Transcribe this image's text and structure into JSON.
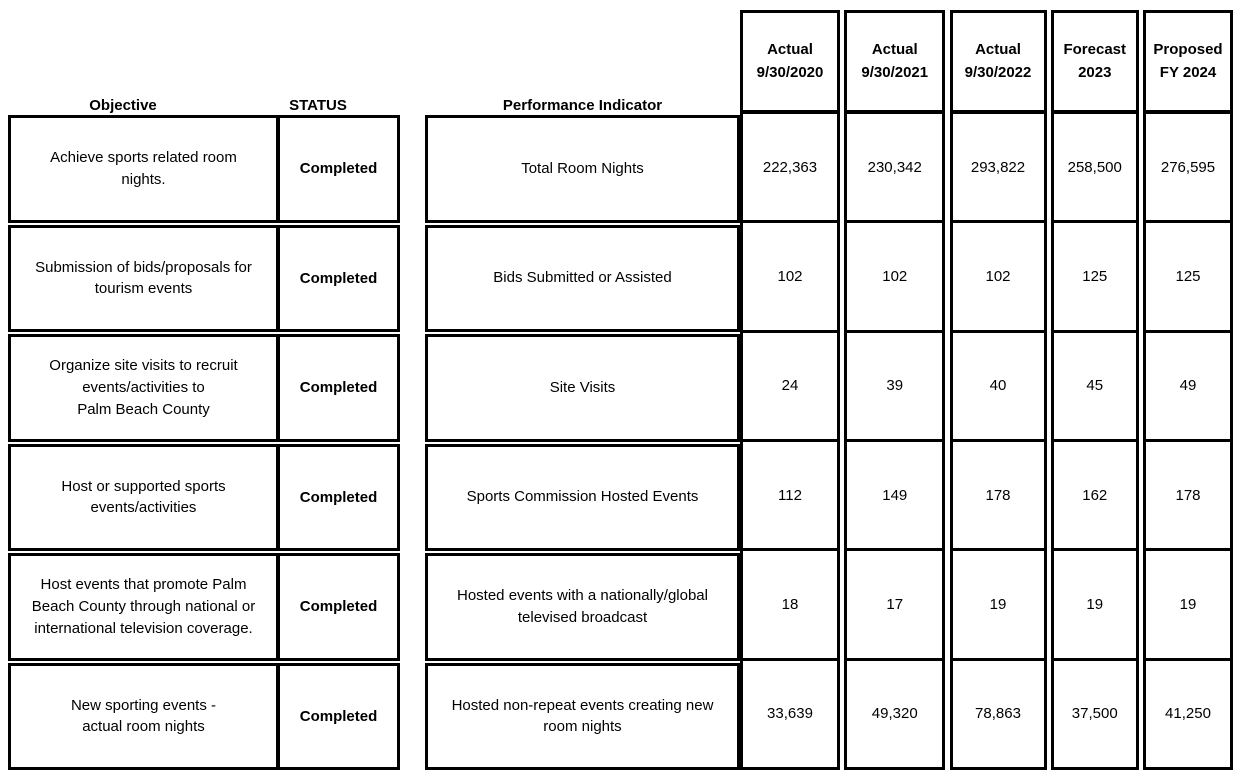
{
  "document": {
    "background_color": "#ffffff",
    "border_color": "#000000",
    "text_color": "#000000"
  },
  "column_labels": {
    "objective": "Objective",
    "status": "STATUS",
    "performance_indicator": "Performance Indicator"
  },
  "objectives_table": {
    "rows": [
      {
        "objective": "Achieve sports related room\nnights.",
        "status": "Completed"
      },
      {
        "objective": "Submission of bids/proposals for\ntourism events",
        "status": "Completed"
      },
      {
        "objective": "Organize site visits to recruit\nevents/activities to\nPalm Beach County",
        "status": "Completed"
      },
      {
        "objective": "Host or supported sports\nevents/activities",
        "status": "Completed"
      },
      {
        "objective": "Host events that promote Palm\nBeach County through national or\ninternational television coverage.",
        "status": "Completed"
      },
      {
        "objective": "New sporting events -\nactual room nights",
        "status": "Completed"
      }
    ]
  },
  "indicators_table": {
    "rows": [
      "Total Room Nights",
      "Bids Submitted or Assisted",
      "Site Visits",
      "Sports Commission Hosted Events",
      "Hosted events with a nationally/global\ntelevised broadcast",
      "Hosted non-repeat events creating new\nroom nights"
    ]
  },
  "value_columns": [
    {
      "header": "Actual\n9/30/2020",
      "values": [
        "222,363",
        "102",
        "24",
        "112",
        "18",
        "33,639"
      ]
    },
    {
      "header": "Actual\n9/30/2021",
      "values": [
        "230,342",
        "102",
        "39",
        "149",
        "17",
        "49,320"
      ]
    },
    {
      "header": "Actual\n9/30/2022",
      "values": [
        "293,822",
        "102",
        "40",
        "178",
        "19",
        "78,863"
      ]
    },
    {
      "header": "Forecast\n2023",
      "values": [
        "258,500",
        "125",
        "45",
        "162",
        "19",
        "37,500"
      ]
    },
    {
      "header": "Proposed\nFY 2024",
      "values": [
        "276,595",
        "125",
        "49",
        "178",
        "19",
        "41,250"
      ]
    }
  ]
}
